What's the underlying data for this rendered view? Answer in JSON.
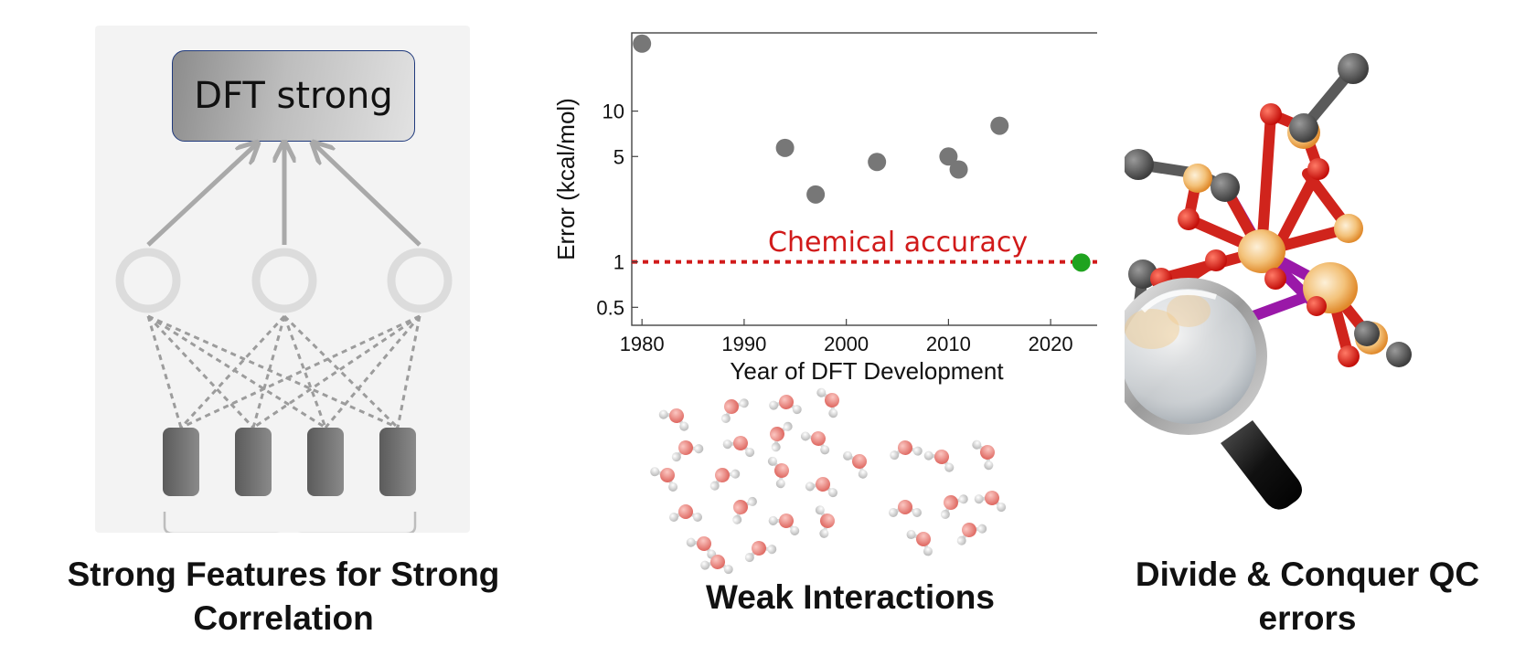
{
  "panels": {
    "left": {
      "box_label": "DFT strong",
      "caption_line1": "Strong Features for Strong",
      "caption_line2": "Correlation"
    },
    "middle": {
      "caption": "Weak Interactions"
    },
    "right": {
      "caption_line1": "Divide & Conquer QC",
      "caption_line2": "errors"
    }
  },
  "chart_data": {
    "type": "scatter",
    "xlabel": "Year of DFT Development",
    "ylabel": "Error (kcal/mol)",
    "xlim": [
      1979,
      2025
    ],
    "ylim": [
      0.38,
      33
    ],
    "y_scale": "log",
    "x_ticks": [
      1980,
      1990,
      2000,
      2010,
      2020
    ],
    "y_ticks": [
      0.5,
      1,
      5,
      10
    ],
    "y_tick_labels": [
      "0.5",
      "1",
      "5",
      "10"
    ],
    "grid": false,
    "points": [
      {
        "x": 1980,
        "y": 28,
        "color": "#777777"
      },
      {
        "x": 1994,
        "y": 5.7,
        "color": "#777777"
      },
      {
        "x": 1997,
        "y": 2.8,
        "color": "#777777"
      },
      {
        "x": 2003,
        "y": 4.6,
        "color": "#777777"
      },
      {
        "x": 2010,
        "y": 5.0,
        "color": "#777777"
      },
      {
        "x": 2011,
        "y": 4.1,
        "color": "#777777"
      },
      {
        "x": 2015,
        "y": 8.0,
        "color": "#777777"
      },
      {
        "x": 2023,
        "y": 0.99,
        "color": "#1fa31f"
      }
    ],
    "reference_line": {
      "y": 1,
      "label": "Chemical accuracy",
      "color": "#d11a1a",
      "style": "dotted"
    }
  }
}
